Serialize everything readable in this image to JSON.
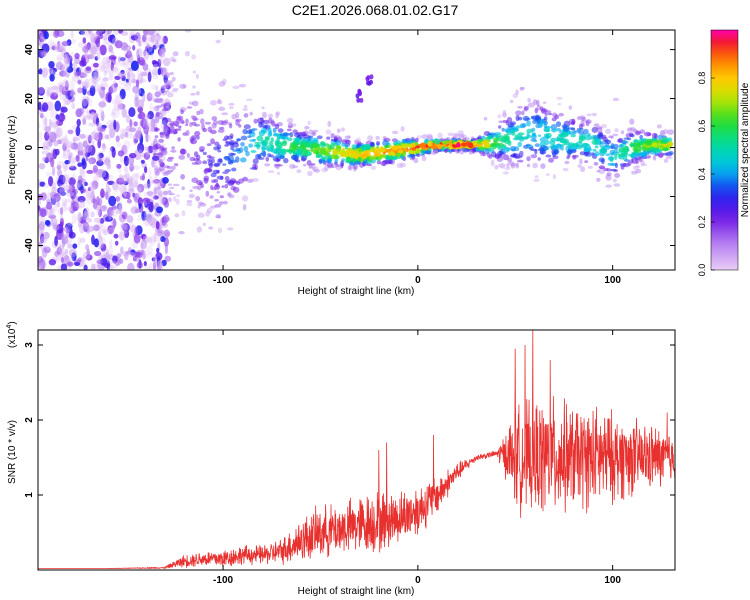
{
  "title": "C2E1.2026.068.01.02.G17",
  "chart_data": [
    {
      "type": "heatmap",
      "title": "C2E1.2026.068.01.02.G17",
      "xlabel": "Height of straight line (km)",
      "ylabel": "Frequency (Hz)",
      "xlim": [
        -195,
        132
      ],
      "ylim": [
        -50,
        48
      ],
      "xticks": [
        -100,
        0,
        100
      ],
      "xtick_labels": [
        "-100",
        "0",
        "100"
      ],
      "yticks": [
        -40,
        -20,
        0,
        20,
        40
      ],
      "ytick_labels": [
        "-40",
        "-20",
        "0",
        "20",
        "40"
      ],
      "colorbar": {
        "label": "Normalized spectral amplitude",
        "range": [
          0,
          1
        ],
        "ticks": [
          0,
          0.2,
          0.4,
          0.6,
          0.8
        ],
        "tick_labels": [
          "0.0",
          "0.2",
          "0.4",
          "0.6",
          "0.8"
        ]
      },
      "ridge": {
        "description": "dominant frequency ridge vs height",
        "x": [
          -135,
          -120,
          -110,
          -100,
          -90,
          -80,
          -70,
          -60,
          -50,
          -40,
          -30,
          -20,
          -10,
          0,
          10,
          20,
          30,
          40,
          50,
          60,
          70,
          80,
          90,
          100,
          110,
          120,
          130
        ],
        "freq": [
          5,
          2,
          -3,
          -6,
          -2,
          3,
          1,
          0,
          -1,
          -2,
          -3,
          -2,
          -1,
          0,
          1,
          1,
          1,
          2,
          4,
          6,
          4,
          3,
          2,
          -4,
          0,
          1,
          1
        ],
        "amplitude": [
          0.2,
          0.2,
          0.25,
          0.3,
          0.4,
          0.5,
          0.55,
          0.6,
          0.65,
          0.75,
          0.8,
          0.85,
          0.85,
          0.9,
          0.95,
          0.95,
          0.9,
          0.6,
          0.5,
          0.45,
          0.5,
          0.5,
          0.5,
          0.45,
          0.6,
          0.7,
          0.75
        ],
        "spread_hz": [
          12,
          14,
          12,
          10,
          8,
          5,
          4,
          3,
          3,
          2.5,
          2,
          2,
          2,
          1.5,
          1,
          1,
          1,
          3,
          5,
          6,
          5,
          4,
          4,
          4,
          3,
          2,
          2
        ]
      },
      "noise_region": {
        "x": [
          -195,
          -128
        ],
        "freq": [
          -50,
          48
        ]
      },
      "side_features": [
        {
          "x": -30,
          "freq": 21
        },
        {
          "x": -25,
          "freq": 27
        }
      ]
    },
    {
      "type": "line",
      "xlabel": "Height of straight line (km)",
      "ylabel": "SNR (10 * v/v)",
      "yscale_label": "(x10",
      "yscale_exp": "4",
      "yscale_close": ")",
      "xlim": [
        -195,
        132
      ],
      "ylim": [
        0,
        3.2
      ],
      "xticks": [
        -100,
        0,
        100
      ],
      "xtick_labels": [
        "-100",
        "0",
        "100"
      ],
      "yticks": [
        1,
        2,
        3
      ],
      "ytick_labels": [
        "1",
        "2",
        "3"
      ],
      "line_color": "#e8302e",
      "series": [
        {
          "name": "SNR",
          "x": [
            -195,
            -160,
            -130,
            -120,
            -110,
            -100,
            -90,
            -80,
            -70,
            -60,
            -50,
            -40,
            -30,
            -20,
            -10,
            0,
            10,
            20,
            30,
            40,
            45,
            50,
            60,
            70,
            80,
            90,
            100,
            110,
            120,
            132
          ],
          "y": [
            0.02,
            0.02,
            0.03,
            0.12,
            0.15,
            0.15,
            0.2,
            0.2,
            0.25,
            0.4,
            0.5,
            0.55,
            0.6,
            0.65,
            0.7,
            0.8,
            1.0,
            1.3,
            1.5,
            1.55,
            1.55,
            1.5,
            1.5,
            1.5,
            1.5,
            1.5,
            1.5,
            1.5,
            1.5,
            1.5
          ],
          "noise_amp": [
            0,
            0,
            0.01,
            0.1,
            0.12,
            0.15,
            0.15,
            0.15,
            0.2,
            0.35,
            0.4,
            0.4,
            0.45,
            0.5,
            0.4,
            0.4,
            0.3,
            0.15,
            0.05,
            0.05,
            0.35,
            0.8,
            0.9,
            0.9,
            0.8,
            0.8,
            0.7,
            0.6,
            0.5,
            0.4
          ],
          "peaks": [
            {
              "x": 59,
              "y": 3.2
            },
            {
              "x": 55,
              "y": 3.0
            },
            {
              "x": 50,
              "y": 2.95
            },
            {
              "x": 68,
              "y": 2.8
            },
            {
              "x": 8,
              "y": 1.8
            },
            {
              "x": -16,
              "y": 1.7
            },
            {
              "x": -20,
              "y": 1.6
            },
            {
              "x": 128,
              "y": 2.1
            }
          ]
        }
      ]
    }
  ]
}
